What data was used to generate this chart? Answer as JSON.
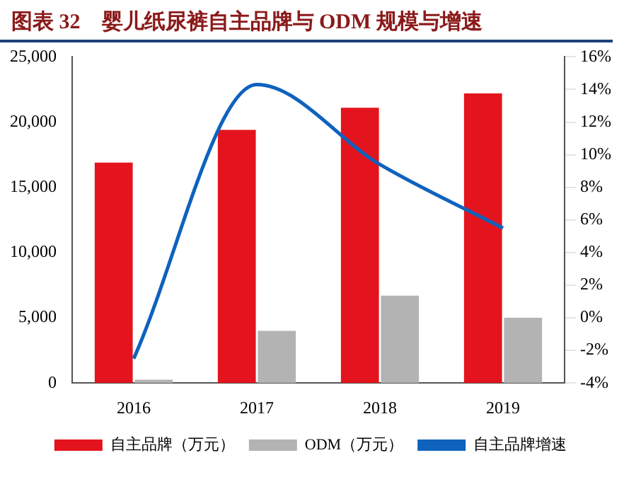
{
  "chart_data": {
    "type": "bar",
    "title": "图表 32　婴儿纸尿裤自主品牌与 ODM 规模与增速",
    "categories": [
      "2016",
      "2017",
      "2018",
      "2019"
    ],
    "series": [
      {
        "name": "自主品牌（万元）",
        "color": "#e3141d",
        "values": [
          16900,
          19400,
          21100,
          22200
        ]
      },
      {
        "name": "ODM（万元）",
        "color": "#b3b3b3",
        "values": [
          250,
          4000,
          6700,
          5000
        ]
      },
      {
        "name": "自主品牌增速",
        "color": "#0f62be",
        "type": "line",
        "axis": "y2",
        "values": [
          -2.5,
          14.3,
          9.4,
          5.5
        ]
      }
    ],
    "ylim": [
      0,
      25000
    ],
    "yticks": [
      {
        "value": 0,
        "label": "0"
      },
      {
        "value": 5000,
        "label": "5,000"
      },
      {
        "value": 10000,
        "label": "10,000"
      },
      {
        "value": 15000,
        "label": "15,000"
      },
      {
        "value": 20000,
        "label": "20,000"
      },
      {
        "value": 25000,
        "label": "25,000"
      }
    ],
    "y2lim": [
      -4,
      16
    ],
    "y2ticks": [
      {
        "value": -4,
        "label": "-4%"
      },
      {
        "value": -2,
        "label": "-2%"
      },
      {
        "value": 0,
        "label": "0%"
      },
      {
        "value": 2,
        "label": "2%"
      },
      {
        "value": 4,
        "label": "4%"
      },
      {
        "value": 6,
        "label": "6%"
      },
      {
        "value": 8,
        "label": "8%"
      },
      {
        "value": 10,
        "label": "10%"
      },
      {
        "value": 12,
        "label": "12%"
      },
      {
        "value": 14,
        "label": "14%"
      },
      {
        "value": 16,
        "label": "16%"
      }
    ],
    "grid": false,
    "legend": "bottom",
    "marker": "none"
  }
}
